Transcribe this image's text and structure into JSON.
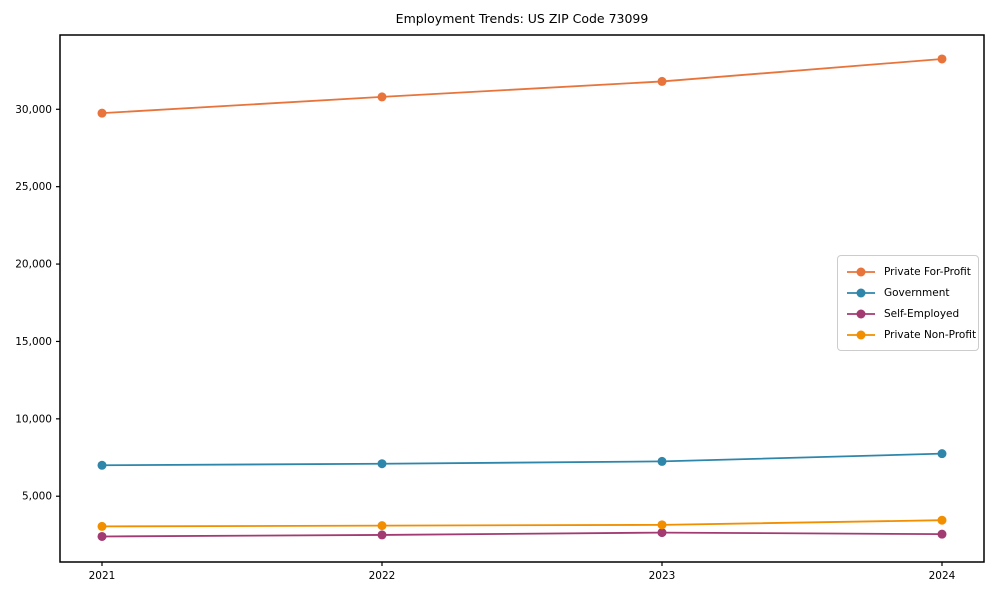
{
  "chart_data": {
    "type": "line",
    "title": "Employment Trends: US ZIP Code 73099",
    "categories": [
      "2021",
      "2022",
      "2023",
      "2024"
    ],
    "series": [
      {
        "name": "Private For-Profit",
        "color": "#e8743b",
        "values": [
          29750,
          30800,
          31800,
          33250
        ]
      },
      {
        "name": "Government",
        "color": "#2e86ab",
        "values": [
          7000,
          7100,
          7250,
          7750
        ]
      },
      {
        "name": "Self-Employed",
        "color": "#a23b72",
        "values": [
          2400,
          2500,
          2650,
          2550
        ]
      },
      {
        "name": "Private Non-Profit",
        "color": "#f18f01",
        "values": [
          3050,
          3100,
          3150,
          3450
        ]
      }
    ],
    "xlabel": "",
    "ylabel": "",
    "ylim": [
      750,
      34800
    ],
    "y_ticks": [
      5000,
      10000,
      15000,
      20000,
      25000,
      30000
    ],
    "y_tick_labels": [
      "5,000",
      "10,000",
      "15,000",
      "20,000",
      "25,000",
      "30,000"
    ],
    "grid": false,
    "legend_position": "center right",
    "marker": "circle",
    "axis_color": "#000000",
    "background": "#ffffff",
    "legend_border_color": "#cccccc"
  }
}
